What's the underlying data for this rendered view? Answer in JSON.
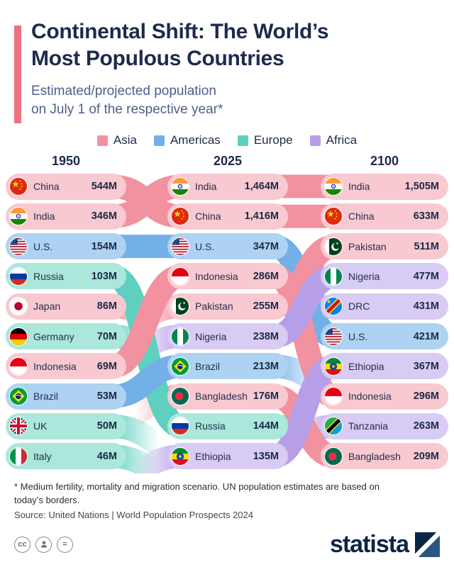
{
  "header": {
    "title_line1": "Continental Shift: The World’s",
    "title_line2": "Most Populous Countries",
    "subtitle_line1": "Estimated/projected population",
    "subtitle_line2": "on July 1 of the respective year*"
  },
  "legend": [
    {
      "label": "Asia",
      "color": "#f2919f"
    },
    {
      "label": "Americas",
      "color": "#74b0e8"
    },
    {
      "label": "Europe",
      "color": "#5fd0bf"
    },
    {
      "label": "Africa",
      "color": "#b79fe8"
    }
  ],
  "continent_colors": {
    "Asia": {
      "ribbon": "#f2919f",
      "pill": "#f8c9d0"
    },
    "Americas": {
      "ribbon": "#74b0e8",
      "pill": "#aed2f2"
    },
    "Europe": {
      "ribbon": "#5fd0bf",
      "pill": "#abe7da"
    },
    "Africa": {
      "ribbon": "#b79fe8",
      "pill": "#d8cbf4"
    }
  },
  "chart_data": {
    "type": "bump",
    "title": "Continental Shift: The World’s Most Populous Countries",
    "subtitle": "Estimated/projected population on July 1 of the respective year*",
    "legend_entries": [
      "Asia",
      "Americas",
      "Europe",
      "Africa"
    ],
    "columns": [
      {
        "year": "1950",
        "rows": [
          {
            "rank": 1,
            "country": "China",
            "value": "544M",
            "continent": "Asia",
            "flag": "china-flag-icon"
          },
          {
            "rank": 2,
            "country": "India",
            "value": "346M",
            "continent": "Asia",
            "flag": "india-flag-icon"
          },
          {
            "rank": 3,
            "country": "U.S.",
            "value": "154M",
            "continent": "Americas",
            "flag": "us-flag-icon"
          },
          {
            "rank": 4,
            "country": "Russia",
            "value": "103M",
            "continent": "Europe",
            "flag": "russia-flag-icon"
          },
          {
            "rank": 5,
            "country": "Japan",
            "value": "86M",
            "continent": "Asia",
            "flag": "japan-flag-icon"
          },
          {
            "rank": 6,
            "country": "Germany",
            "value": "70M",
            "continent": "Europe",
            "flag": "germany-flag-icon"
          },
          {
            "rank": 7,
            "country": "Indonesia",
            "value": "69M",
            "continent": "Asia",
            "flag": "indonesia-flag-icon"
          },
          {
            "rank": 8,
            "country": "Brazil",
            "value": "53M",
            "continent": "Americas",
            "flag": "brazil-flag-icon"
          },
          {
            "rank": 9,
            "country": "UK",
            "value": "50M",
            "continent": "Europe",
            "flag": "uk-flag-icon"
          },
          {
            "rank": 10,
            "country": "Italy",
            "value": "46M",
            "continent": "Europe",
            "flag": "italy-flag-icon"
          }
        ]
      },
      {
        "year": "2025",
        "rows": [
          {
            "rank": 1,
            "country": "India",
            "value": "1,464M",
            "continent": "Asia",
            "flag": "india-flag-icon"
          },
          {
            "rank": 2,
            "country": "China",
            "value": "1,416M",
            "continent": "Asia",
            "flag": "china-flag-icon"
          },
          {
            "rank": 3,
            "country": "U.S.",
            "value": "347M",
            "continent": "Americas",
            "flag": "us-flag-icon"
          },
          {
            "rank": 4,
            "country": "Indonesia",
            "value": "286M",
            "continent": "Asia",
            "flag": "indonesia-flag-icon"
          },
          {
            "rank": 5,
            "country": "Pakistan",
            "value": "255M",
            "continent": "Asia",
            "flag": "pakistan-flag-icon"
          },
          {
            "rank": 6,
            "country": "Nigeria",
            "value": "238M",
            "continent": "Africa",
            "flag": "nigeria-flag-icon"
          },
          {
            "rank": 7,
            "country": "Brazil",
            "value": "213M",
            "continent": "Americas",
            "flag": "brazil-flag-icon"
          },
          {
            "rank": 8,
            "country": "Bangladesh",
            "value": "176M",
            "continent": "Asia",
            "flag": "bangladesh-flag-icon"
          },
          {
            "rank": 9,
            "country": "Russia",
            "value": "144M",
            "continent": "Europe",
            "flag": "russia-flag-icon"
          },
          {
            "rank": 10,
            "country": "Ethiopia",
            "value": "135M",
            "continent": "Africa",
            "flag": "ethiopia-flag-icon"
          }
        ]
      },
      {
        "year": "2100",
        "rows": [
          {
            "rank": 1,
            "country": "India",
            "value": "1,505M",
            "continent": "Asia",
            "flag": "india-flag-icon"
          },
          {
            "rank": 2,
            "country": "China",
            "value": "633M",
            "continent": "Asia",
            "flag": "china-flag-icon"
          },
          {
            "rank": 3,
            "country": "Pakistan",
            "value": "511M",
            "continent": "Asia",
            "flag": "pakistan-flag-icon"
          },
          {
            "rank": 4,
            "country": "Nigeria",
            "value": "477M",
            "continent": "Africa",
            "flag": "nigeria-flag-icon"
          },
          {
            "rank": 5,
            "country": "DRC",
            "value": "431M",
            "continent": "Africa",
            "flag": "drc-flag-icon"
          },
          {
            "rank": 6,
            "country": "U.S.",
            "value": "421M",
            "continent": "Americas",
            "flag": "us-flag-icon"
          },
          {
            "rank": 7,
            "country": "Ethiopia",
            "value": "367M",
            "continent": "Africa",
            "flag": "ethiopia-flag-icon"
          },
          {
            "rank": 8,
            "country": "Indonesia",
            "value": "296M",
            "continent": "Asia",
            "flag": "indonesia-flag-icon"
          },
          {
            "rank": 9,
            "country": "Tanzania",
            "value": "263M",
            "continent": "Africa",
            "flag": "tanzania-flag-icon"
          },
          {
            "rank": 10,
            "country": "Bangladesh",
            "value": "209M",
            "continent": "Asia",
            "flag": "bangladesh-flag-icon"
          }
        ]
      }
    ]
  },
  "footnote_line1": "* Medium fertility, mortality and migration scenario. UN population estimates are based on",
  "footnote_line2": "today’s borders.",
  "source": "Source: United Nations | World Population Prospects 2024",
  "footer": {
    "logo_text": "statista",
    "badges": [
      {
        "name": "cc-license-icon",
        "glyph": "cc"
      },
      {
        "name": "attribution-person-icon",
        "glyph": ""
      },
      {
        "name": "no-derivatives-icon",
        "glyph": "="
      }
    ]
  }
}
